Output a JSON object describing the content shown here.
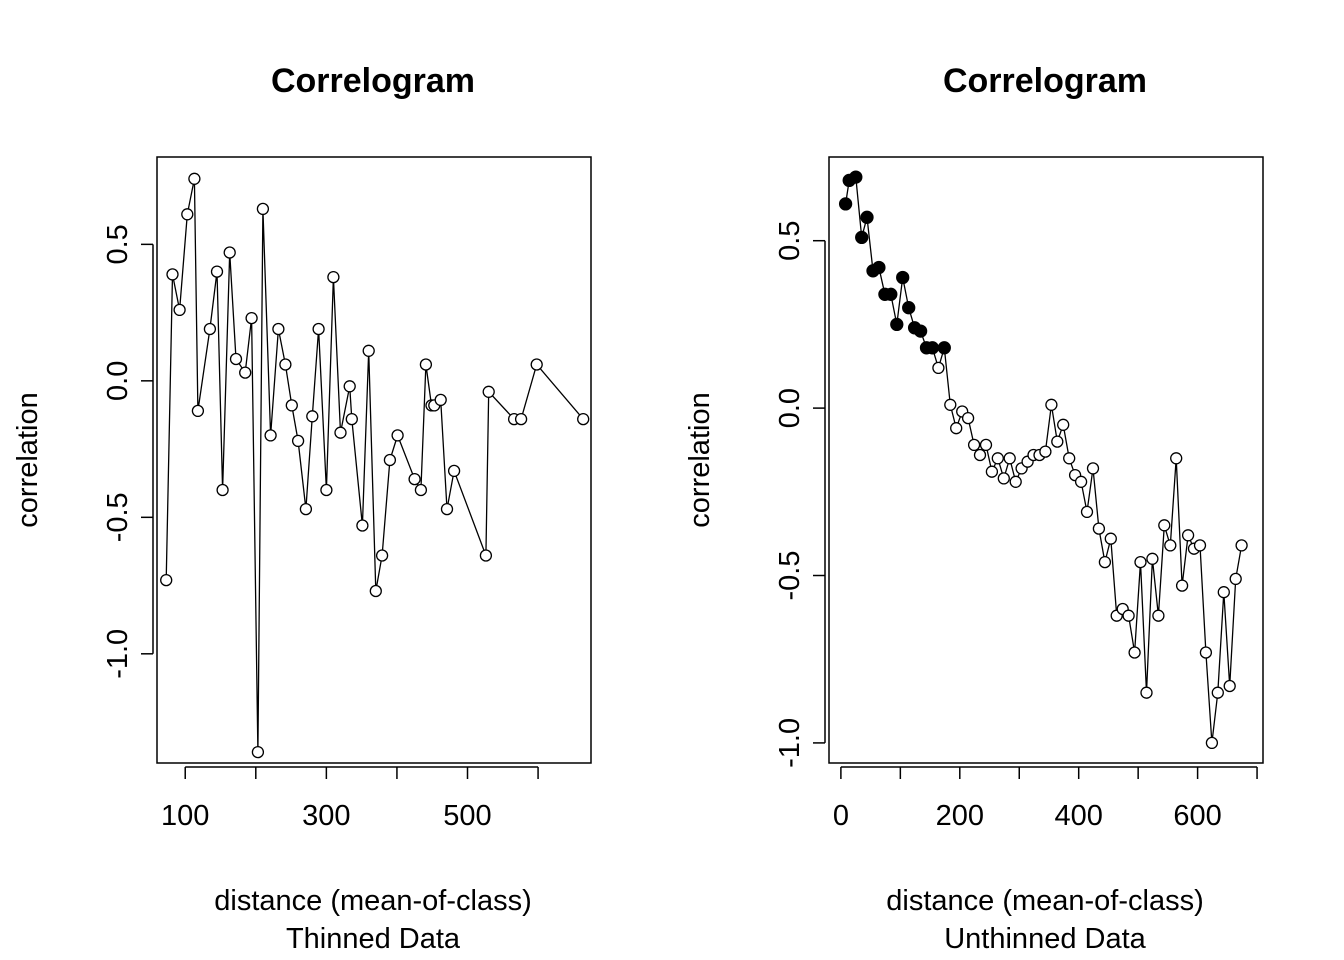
{
  "chart_data": [
    {
      "type": "line",
      "title": "Correlogram",
      "xlabel": "distance (mean-of-class)",
      "subtitle": "Thinned Data",
      "ylabel": "correlation",
      "xlim": [
        60,
        675
      ],
      "ylim": [
        -1.4,
        0.82
      ],
      "xticks": [
        100,
        200,
        300,
        400,
        500,
        600
      ],
      "xtick_labels": [
        "100",
        "",
        "300",
        "",
        "500",
        ""
      ],
      "yticks": [
        -1.0,
        -0.5,
        0.0,
        0.5
      ],
      "ytick_labels": [
        "-1.0",
        "-0.5",
        "0.0",
        "0.5"
      ],
      "grid": false,
      "series": [
        {
          "points": [
            {
              "x": 73,
              "y": -0.73,
              "filled": false
            },
            {
              "x": 82,
              "y": 0.39,
              "filled": false
            },
            {
              "x": 92,
              "y": 0.26,
              "filled": false
            },
            {
              "x": 103,
              "y": 0.61,
              "filled": false
            },
            {
              "x": 113,
              "y": 0.74,
              "filled": false
            },
            {
              "x": 118,
              "y": -0.11,
              "filled": false
            },
            {
              "x": 135,
              "y": 0.19,
              "filled": false
            },
            {
              "x": 145,
              "y": 0.4,
              "filled": false
            },
            {
              "x": 153,
              "y": -0.4,
              "filled": false
            },
            {
              "x": 163,
              "y": 0.47,
              "filled": false
            },
            {
              "x": 172,
              "y": 0.08,
              "filled": false
            },
            {
              "x": 185,
              "y": 0.03,
              "filled": false
            },
            {
              "x": 194,
              "y": 0.23,
              "filled": false
            },
            {
              "x": 203,
              "y": -1.36,
              "filled": false
            },
            {
              "x": 210,
              "y": 0.63,
              "filled": false
            },
            {
              "x": 221,
              "y": -0.2,
              "filled": false
            },
            {
              "x": 232,
              "y": 0.19,
              "filled": false
            },
            {
              "x": 242,
              "y": 0.06,
              "filled": false
            },
            {
              "x": 251,
              "y": -0.09,
              "filled": false
            },
            {
              "x": 260,
              "y": -0.22,
              "filled": false
            },
            {
              "x": 271,
              "y": -0.47,
              "filled": false
            },
            {
              "x": 280,
              "y": -0.13,
              "filled": false
            },
            {
              "x": 289,
              "y": 0.19,
              "filled": false
            },
            {
              "x": 300,
              "y": -0.4,
              "filled": false
            },
            {
              "x": 310,
              "y": 0.38,
              "filled": false
            },
            {
              "x": 320,
              "y": -0.19,
              "filled": false
            },
            {
              "x": 333,
              "y": -0.02,
              "filled": false
            },
            {
              "x": 336,
              "y": -0.14,
              "filled": false
            },
            {
              "x": 351,
              "y": -0.53,
              "filled": false
            },
            {
              "x": 360,
              "y": 0.11,
              "filled": false
            },
            {
              "x": 370,
              "y": -0.77,
              "filled": false
            },
            {
              "x": 379,
              "y": -0.64,
              "filled": false
            },
            {
              "x": 390,
              "y": -0.29,
              "filled": false
            },
            {
              "x": 401,
              "y": -0.2,
              "filled": false
            },
            {
              "x": 425,
              "y": -0.36,
              "filled": false
            },
            {
              "x": 434,
              "y": -0.4,
              "filled": false
            },
            {
              "x": 441,
              "y": 0.06,
              "filled": false
            },
            {
              "x": 449,
              "y": -0.09,
              "filled": false
            },
            {
              "x": 453,
              "y": -0.09,
              "filled": false
            },
            {
              "x": 462,
              "y": -0.07,
              "filled": false
            },
            {
              "x": 471,
              "y": -0.47,
              "filled": false
            },
            {
              "x": 481,
              "y": -0.33,
              "filled": false
            },
            {
              "x": 526,
              "y": -0.64,
              "filled": false
            },
            {
              "x": 530,
              "y": -0.04,
              "filled": false
            },
            {
              "x": 566,
              "y": -0.14,
              "filled": false
            },
            {
              "x": 576,
              "y": -0.14,
              "filled": false
            },
            {
              "x": 598,
              "y": 0.06,
              "filled": false
            },
            {
              "x": 664,
              "y": -0.14,
              "filled": false
            }
          ]
        }
      ]
    },
    {
      "type": "line",
      "title": "Correlogram",
      "xlabel": "distance (mean-of-class)",
      "subtitle": "Unthinned Data",
      "ylabel": "correlation",
      "xlim": [
        -20,
        710
      ],
      "ylim": [
        -1.06,
        0.75
      ],
      "xticks": [
        0,
        100,
        200,
        300,
        400,
        500,
        600,
        700
      ],
      "xtick_labels": [
        "0",
        "",
        "200",
        "",
        "400",
        "",
        "600",
        ""
      ],
      "yticks": [
        -1.0,
        -0.5,
        0.0,
        0.5
      ],
      "ytick_labels": [
        "-1.0",
        "-0.5",
        "0.0",
        "0.5"
      ],
      "grid": false,
      "series": [
        {
          "points": [
            {
              "x": 8,
              "y": 0.61,
              "filled": true
            },
            {
              "x": 14,
              "y": 0.68,
              "filled": true
            },
            {
              "x": 25,
              "y": 0.69,
              "filled": true
            },
            {
              "x": 35,
              "y": 0.51,
              "filled": true
            },
            {
              "x": 44,
              "y": 0.57,
              "filled": true
            },
            {
              "x": 54,
              "y": 0.41,
              "filled": true
            },
            {
              "x": 64,
              "y": 0.42,
              "filled": true
            },
            {
              "x": 74,
              "y": 0.34,
              "filled": true
            },
            {
              "x": 84,
              "y": 0.34,
              "filled": true
            },
            {
              "x": 94,
              "y": 0.25,
              "filled": true
            },
            {
              "x": 104,
              "y": 0.39,
              "filled": true
            },
            {
              "x": 114,
              "y": 0.3,
              "filled": true
            },
            {
              "x": 124,
              "y": 0.24,
              "filled": true
            },
            {
              "x": 134,
              "y": 0.23,
              "filled": true
            },
            {
              "x": 144,
              "y": 0.18,
              "filled": true
            },
            {
              "x": 154,
              "y": 0.18,
              "filled": true
            },
            {
              "x": 164,
              "y": 0.12,
              "filled": false
            },
            {
              "x": 174,
              "y": 0.18,
              "filled": true
            },
            {
              "x": 184,
              "y": 0.01,
              "filled": false
            },
            {
              "x": 194,
              "y": -0.06,
              "filled": false
            },
            {
              "x": 204,
              "y": -0.01,
              "filled": false
            },
            {
              "x": 214,
              "y": -0.03,
              "filled": false
            },
            {
              "x": 224,
              "y": -0.11,
              "filled": false
            },
            {
              "x": 234,
              "y": -0.14,
              "filled": false
            },
            {
              "x": 244,
              "y": -0.11,
              "filled": false
            },
            {
              "x": 254,
              "y": -0.19,
              "filled": false
            },
            {
              "x": 264,
              "y": -0.15,
              "filled": false
            },
            {
              "x": 274,
              "y": -0.21,
              "filled": false
            },
            {
              "x": 284,
              "y": -0.15,
              "filled": false
            },
            {
              "x": 294,
              "y": -0.22,
              "filled": false
            },
            {
              "x": 304,
              "y": -0.18,
              "filled": false
            },
            {
              "x": 314,
              "y": -0.16,
              "filled": false
            },
            {
              "x": 324,
              "y": -0.14,
              "filled": false
            },
            {
              "x": 334,
              "y": -0.14,
              "filled": false
            },
            {
              "x": 344,
              "y": -0.13,
              "filled": false
            },
            {
              "x": 354,
              "y": 0.01,
              "filled": false
            },
            {
              "x": 364,
              "y": -0.1,
              "filled": false
            },
            {
              "x": 374,
              "y": -0.05,
              "filled": false
            },
            {
              "x": 384,
              "y": -0.15,
              "filled": false
            },
            {
              "x": 394,
              "y": -0.2,
              "filled": false
            },
            {
              "x": 404,
              "y": -0.22,
              "filled": false
            },
            {
              "x": 414,
              "y": -0.31,
              "filled": false
            },
            {
              "x": 424,
              "y": -0.18,
              "filled": false
            },
            {
              "x": 434,
              "y": -0.36,
              "filled": false
            },
            {
              "x": 444,
              "y": -0.46,
              "filled": false
            },
            {
              "x": 454,
              "y": -0.39,
              "filled": false
            },
            {
              "x": 464,
              "y": -0.62,
              "filled": false
            },
            {
              "x": 474,
              "y": -0.6,
              "filled": false
            },
            {
              "x": 484,
              "y": -0.62,
              "filled": false
            },
            {
              "x": 494,
              "y": -0.73,
              "filled": false
            },
            {
              "x": 504,
              "y": -0.46,
              "filled": false
            },
            {
              "x": 514,
              "y": -0.85,
              "filled": false
            },
            {
              "x": 524,
              "y": -0.45,
              "filled": false
            },
            {
              "x": 534,
              "y": -0.62,
              "filled": false
            },
            {
              "x": 544,
              "y": -0.35,
              "filled": false
            },
            {
              "x": 554,
              "y": -0.41,
              "filled": false
            },
            {
              "x": 564,
              "y": -0.15,
              "filled": false
            },
            {
              "x": 574,
              "y": -0.53,
              "filled": false
            },
            {
              "x": 584,
              "y": -0.38,
              "filled": false
            },
            {
              "x": 594,
              "y": -0.42,
              "filled": false
            },
            {
              "x": 604,
              "y": -0.41,
              "filled": false
            },
            {
              "x": 614,
              "y": -0.73,
              "filled": false
            },
            {
              "x": 624,
              "y": -1.0,
              "filled": false
            },
            {
              "x": 634,
              "y": -0.85,
              "filled": false
            },
            {
              "x": 644,
              "y": -0.55,
              "filled": false
            },
            {
              "x": 654,
              "y": -0.83,
              "filled": false
            },
            {
              "x": 664,
              "y": -0.51,
              "filled": false
            },
            {
              "x": 674,
              "y": -0.41,
              "filled": false
            }
          ]
        }
      ]
    }
  ]
}
